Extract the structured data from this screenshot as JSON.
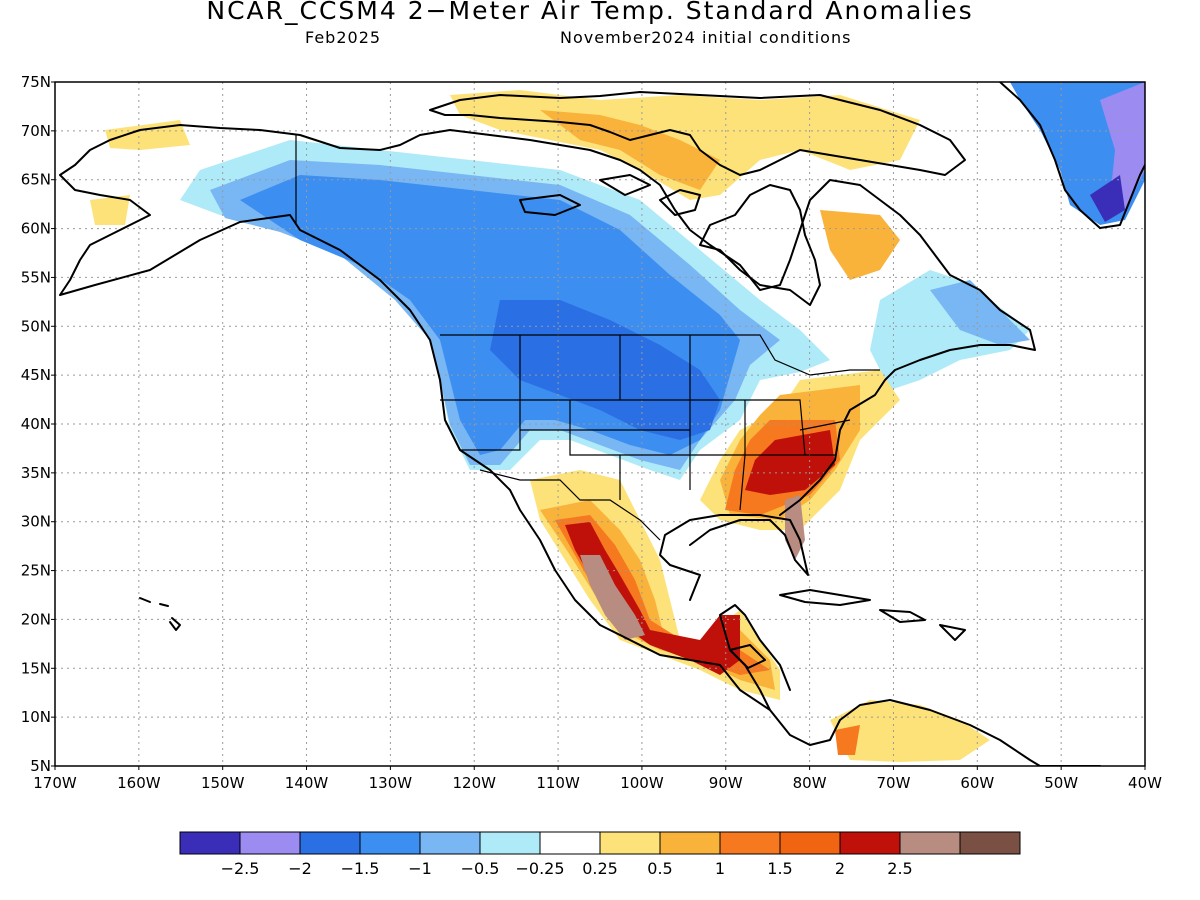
{
  "header": {
    "title": "NCAR_CCSM4 2−Meter Air Temp. Standard Anomalies",
    "valid_month": "Feb2025",
    "init": "November2024 initial conditions"
  },
  "map": {
    "lat_labels": [
      "75N",
      "70N",
      "65N",
      "60N",
      "55N",
      "50N",
      "45N",
      "40N",
      "35N",
      "30N",
      "25N",
      "20N",
      "15N",
      "10N",
      "5N"
    ],
    "lon_labels": [
      "170W",
      "160W",
      "150W",
      "140W",
      "130W",
      "120W",
      "110W",
      "100W",
      "90W",
      "80W",
      "70W",
      "60W",
      "50W",
      "40W"
    ],
    "lat_range": [
      5,
      75
    ],
    "lon_range": [
      -170,
      -40
    ],
    "grid": "dotted"
  },
  "colorbar": {
    "colors": [
      "#3a2db8",
      "#9c8cf2",
      "#2a6fe4",
      "#3c8ef0",
      "#78b6f4",
      "#aeeaf8",
      "#ffffff",
      "#fde27a",
      "#f9b23a",
      "#f6781f",
      "#f06412",
      "#c0100a",
      "#b88c80",
      "#7a5044"
    ],
    "labels": [
      "−2.5",
      "−2",
      "−1.5",
      "−1",
      "−0.5",
      "−0.25",
      "0.25",
      "0.5",
      "1",
      "1.5",
      "2",
      "2.5"
    ]
  }
}
